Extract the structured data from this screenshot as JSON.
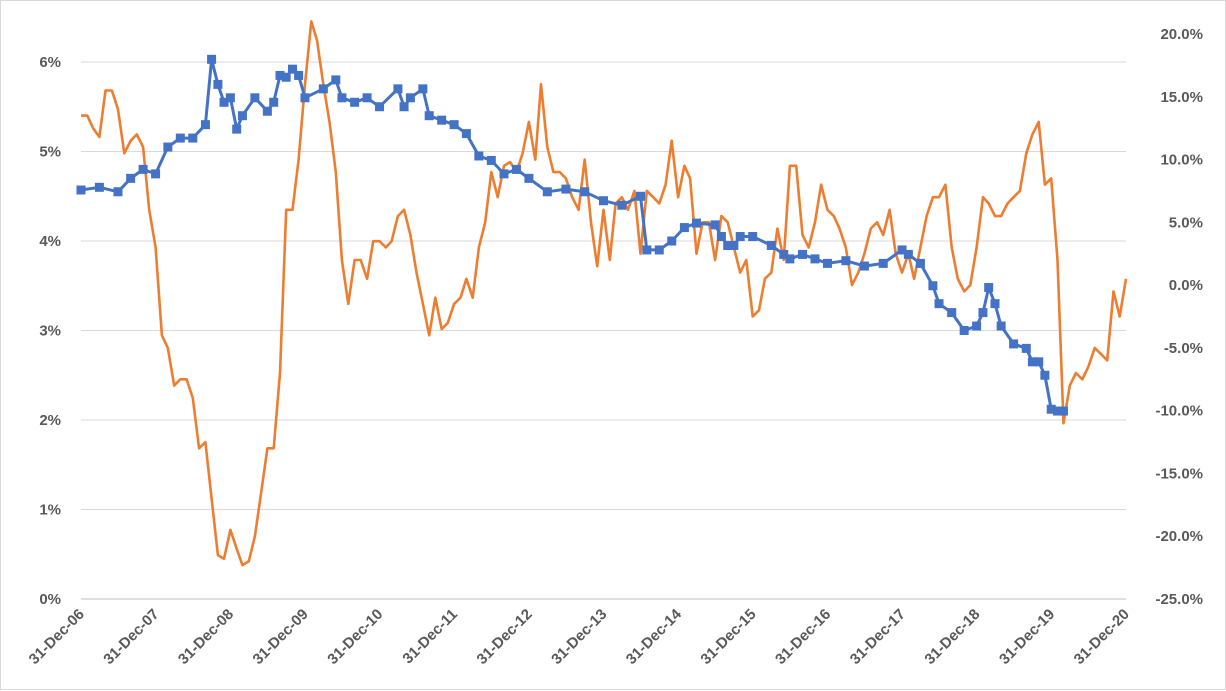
{
  "chart_data": {
    "type": "line",
    "title": "",
    "xlabel": "",
    "ylabel": "",
    "grid": true,
    "legend": "none",
    "x_range": [
      "2006-12-31",
      "2020-12-31"
    ],
    "y_left": {
      "range": [
        0,
        6
      ],
      "ticks": [
        0,
        1,
        2,
        3,
        4,
        5,
        6
      ],
      "tick_labels": [
        "0%",
        "1%",
        "2%",
        "3%",
        "4%",
        "5%",
        "6%"
      ]
    },
    "y_right": {
      "range": [
        -25,
        20
      ],
      "ticks": [
        -25,
        -20,
        -15,
        -10,
        -5,
        0,
        5,
        10,
        15,
        20
      ],
      "tick_labels": [
        "-25.0%",
        "-20.0%",
        "-15.0%",
        "-10.0%",
        "-5.0%",
        "0.0%",
        "5.0%",
        "10.0%",
        "15.0%",
        "20.0%"
      ]
    },
    "x_ticks": [
      "31-Dec-06",
      "31-Dec-07",
      "31-Dec-08",
      "31-Dec-09",
      "31-Dec-10",
      "31-Dec-11",
      "31-Dec-12",
      "31-Dec-13",
      "31-Dec-14",
      "31-Dec-15",
      "31-Dec-16",
      "31-Dec-17",
      "31-Dec-18",
      "31-Dec-19",
      "31-Dec-20"
    ],
    "series": [
      {
        "axis": "left",
        "color": "#4472c4",
        "marker": "square",
        "points": [
          [
            "2006-12-31",
            4.57
          ],
          [
            "2007-03-31",
            4.6
          ],
          [
            "2007-06-30",
            4.55
          ],
          [
            "2007-08-31",
            4.7
          ],
          [
            "2007-10-31",
            4.8
          ],
          [
            "2007-12-31",
            4.75
          ],
          [
            "2008-02-29",
            5.05
          ],
          [
            "2008-04-30",
            5.15
          ],
          [
            "2008-06-30",
            5.15
          ],
          [
            "2008-08-31",
            5.3
          ],
          [
            "2008-09-30",
            6.03
          ],
          [
            "2008-10-31",
            5.75
          ],
          [
            "2008-11-30",
            5.55
          ],
          [
            "2008-12-31",
            5.6
          ],
          [
            "2009-01-31",
            5.25
          ],
          [
            "2009-02-28",
            5.4
          ],
          [
            "2009-04-30",
            5.6
          ],
          [
            "2009-06-30",
            5.45
          ],
          [
            "2009-07-31",
            5.55
          ],
          [
            "2009-08-31",
            5.85
          ],
          [
            "2009-09-30",
            5.83
          ],
          [
            "2009-10-31",
            5.92
          ],
          [
            "2009-11-30",
            5.85
          ],
          [
            "2009-12-31",
            5.6
          ],
          [
            "2010-03-31",
            5.7
          ],
          [
            "2010-05-31",
            5.8
          ],
          [
            "2010-06-30",
            5.6
          ],
          [
            "2010-08-31",
            5.55
          ],
          [
            "2010-10-31",
            5.6
          ],
          [
            "2010-12-31",
            5.5
          ],
          [
            "2011-03-31",
            5.7
          ],
          [
            "2011-04-30",
            5.5
          ],
          [
            "2011-05-31",
            5.6
          ],
          [
            "2011-07-31",
            5.7
          ],
          [
            "2011-08-31",
            5.4
          ],
          [
            "2011-10-31",
            5.35
          ],
          [
            "2011-12-31",
            5.3
          ],
          [
            "2012-02-29",
            5.2
          ],
          [
            "2012-04-30",
            4.95
          ],
          [
            "2012-06-30",
            4.9
          ],
          [
            "2012-08-31",
            4.75
          ],
          [
            "2012-10-31",
            4.8
          ],
          [
            "2012-12-31",
            4.7
          ],
          [
            "2013-03-31",
            4.55
          ],
          [
            "2013-06-30",
            4.58
          ],
          [
            "2013-09-30",
            4.55
          ],
          [
            "2013-12-31",
            4.45
          ],
          [
            "2014-03-31",
            4.4
          ],
          [
            "2014-06-30",
            4.5
          ],
          [
            "2014-07-31",
            3.9
          ],
          [
            "2014-09-30",
            3.9
          ],
          [
            "2014-11-30",
            4.0
          ],
          [
            "2015-01-31",
            4.15
          ],
          [
            "2015-03-31",
            4.2
          ],
          [
            "2015-06-30",
            4.18
          ],
          [
            "2015-07-31",
            4.05
          ],
          [
            "2015-08-31",
            3.95
          ],
          [
            "2015-09-30",
            3.95
          ],
          [
            "2015-10-31",
            4.05
          ],
          [
            "2015-12-31",
            4.05
          ],
          [
            "2016-03-31",
            3.95
          ],
          [
            "2016-05-31",
            3.85
          ],
          [
            "2016-06-30",
            3.8
          ],
          [
            "2016-08-31",
            3.85
          ],
          [
            "2016-10-31",
            3.8
          ],
          [
            "2016-12-31",
            3.75
          ],
          [
            "2017-03-31",
            3.78
          ],
          [
            "2017-06-30",
            3.72
          ],
          [
            "2017-09-30",
            3.75
          ],
          [
            "2017-12-31",
            3.9
          ],
          [
            "2018-01-31",
            3.85
          ],
          [
            "2018-03-31",
            3.75
          ],
          [
            "2018-05-31",
            3.5
          ],
          [
            "2018-06-30",
            3.3
          ],
          [
            "2018-08-31",
            3.2
          ],
          [
            "2018-10-31",
            3.0
          ],
          [
            "2018-12-31",
            3.05
          ],
          [
            "2019-01-31",
            3.2
          ],
          [
            "2019-02-28",
            3.48
          ],
          [
            "2019-03-31",
            3.3
          ],
          [
            "2019-04-30",
            3.05
          ],
          [
            "2019-06-30",
            2.85
          ],
          [
            "2019-08-31",
            2.8
          ],
          [
            "2019-09-30",
            2.65
          ],
          [
            "2019-10-31",
            2.65
          ],
          [
            "2019-11-30",
            2.5
          ],
          [
            "2019-12-31",
            2.12
          ],
          [
            "2020-01-31",
            2.1
          ],
          [
            "2020-02-29",
            2.1
          ]
        ]
      },
      {
        "axis": "right",
        "color": "#ed7d31",
        "marker": "none",
        "points": [
          [
            "2006-12-31",
            13.5
          ],
          [
            "2007-01-31",
            13.5
          ],
          [
            "2007-02-28",
            12.5
          ],
          [
            "2007-03-31",
            11.8
          ],
          [
            "2007-04-30",
            15.5
          ],
          [
            "2007-05-31",
            15.5
          ],
          [
            "2007-06-30",
            14.0
          ],
          [
            "2007-07-31",
            10.5
          ],
          [
            "2007-08-31",
            11.5
          ],
          [
            "2007-09-30",
            12.0
          ],
          [
            "2007-10-31",
            11.0
          ],
          [
            "2007-11-30",
            6.0
          ],
          [
            "2007-12-31",
            3.0
          ],
          [
            "2008-01-31",
            -4.0
          ],
          [
            "2008-02-29",
            -5.0
          ],
          [
            "2008-03-31",
            -8.0
          ],
          [
            "2008-04-30",
            -7.5
          ],
          [
            "2008-05-31",
            -7.5
          ],
          [
            "2008-06-30",
            -9.0
          ],
          [
            "2008-07-31",
            -13.0
          ],
          [
            "2008-08-31",
            -12.5
          ],
          [
            "2008-09-30",
            -17.0
          ],
          [
            "2008-10-31",
            -21.5
          ],
          [
            "2008-11-30",
            -21.8
          ],
          [
            "2008-12-31",
            -19.5
          ],
          [
            "2009-01-31",
            -21.0
          ],
          [
            "2009-02-28",
            -22.3
          ],
          [
            "2009-03-31",
            -22.0
          ],
          [
            "2009-04-30",
            -20.0
          ],
          [
            "2009-05-31",
            -16.5
          ],
          [
            "2009-06-30",
            -13.0
          ],
          [
            "2009-07-31",
            -13.0
          ],
          [
            "2009-08-31",
            -7.0
          ],
          [
            "2009-09-30",
            6.0
          ],
          [
            "2009-10-31",
            6.0
          ],
          [
            "2009-11-30",
            10.0
          ],
          [
            "2009-12-31",
            16.0
          ],
          [
            "2010-01-31",
            21.0
          ],
          [
            "2010-02-28",
            19.5
          ],
          [
            "2010-03-31",
            16.0
          ],
          [
            "2010-04-30",
            13.0
          ],
          [
            "2010-05-31",
            9.0
          ],
          [
            "2010-06-30",
            2.0
          ],
          [
            "2010-07-31",
            -1.5
          ],
          [
            "2010-08-31",
            2.0
          ],
          [
            "2010-09-30",
            2.0
          ],
          [
            "2010-10-31",
            0.5
          ],
          [
            "2010-11-30",
            3.5
          ],
          [
            "2010-12-31",
            3.5
          ],
          [
            "2011-01-31",
            3.0
          ],
          [
            "2011-02-28",
            3.5
          ],
          [
            "2011-03-31",
            5.5
          ],
          [
            "2011-04-30",
            6.0
          ],
          [
            "2011-05-31",
            4.0
          ],
          [
            "2011-06-30",
            1.0
          ],
          [
            "2011-07-31",
            -1.5
          ],
          [
            "2011-08-31",
            -4.0
          ],
          [
            "2011-09-30",
            -1.0
          ],
          [
            "2011-10-31",
            -3.5
          ],
          [
            "2011-11-30",
            -3.0
          ],
          [
            "2011-12-31",
            -1.5
          ],
          [
            "2012-01-31",
            -1.0
          ],
          [
            "2012-02-29",
            0.5
          ],
          [
            "2012-03-31",
            -1.0
          ],
          [
            "2012-04-30",
            3.0
          ],
          [
            "2012-05-31",
            5.0
          ],
          [
            "2012-06-30",
            9.0
          ],
          [
            "2012-07-31",
            7.0
          ],
          [
            "2012-08-31",
            9.5
          ],
          [
            "2012-09-30",
            9.8
          ],
          [
            "2012-10-31",
            9.0
          ],
          [
            "2012-11-30",
            10.5
          ],
          [
            "2012-12-31",
            13.0
          ],
          [
            "2013-01-31",
            10.0
          ],
          [
            "2013-02-28",
            16.0
          ],
          [
            "2013-03-31",
            11.0
          ],
          [
            "2013-04-30",
            9.0
          ],
          [
            "2013-05-31",
            9.0
          ],
          [
            "2013-06-30",
            8.5
          ],
          [
            "2013-07-31",
            7.0
          ],
          [
            "2013-08-31",
            6.0
          ],
          [
            "2013-09-30",
            10.0
          ],
          [
            "2013-10-31",
            5.0
          ],
          [
            "2013-11-30",
            1.5
          ],
          [
            "2013-12-31",
            6.0
          ],
          [
            "2014-01-31",
            2.0
          ],
          [
            "2014-02-28",
            6.5
          ],
          [
            "2014-03-31",
            7.0
          ],
          [
            "2014-04-30",
            6.0
          ],
          [
            "2014-05-31",
            7.5
          ],
          [
            "2014-06-30",
            2.5
          ],
          [
            "2014-07-31",
            7.5
          ],
          [
            "2014-08-31",
            7.0
          ],
          [
            "2014-09-30",
            6.5
          ],
          [
            "2014-10-31",
            8.0
          ],
          [
            "2014-11-30",
            11.5
          ],
          [
            "2014-12-31",
            7.0
          ],
          [
            "2015-01-31",
            9.5
          ],
          [
            "2015-02-28",
            8.5
          ],
          [
            "2015-03-31",
            2.5
          ],
          [
            "2015-04-30",
            5.0
          ],
          [
            "2015-05-31",
            5.0
          ],
          [
            "2015-06-30",
            2.0
          ],
          [
            "2015-07-31",
            5.5
          ],
          [
            "2015-08-31",
            5.0
          ],
          [
            "2015-09-30",
            3.0
          ],
          [
            "2015-10-31",
            1.0
          ],
          [
            "2015-11-30",
            2.0
          ],
          [
            "2015-12-31",
            -2.5
          ],
          [
            "2016-01-31",
            -2.0
          ],
          [
            "2016-02-29",
            0.5
          ],
          [
            "2016-03-31",
            1.0
          ],
          [
            "2016-04-30",
            4.5
          ],
          [
            "2016-05-31",
            2.0
          ],
          [
            "2016-06-30",
            9.5
          ],
          [
            "2016-07-31",
            9.5
          ],
          [
            "2016-08-31",
            4.0
          ],
          [
            "2016-09-30",
            3.0
          ],
          [
            "2016-10-31",
            5.0
          ],
          [
            "2016-11-30",
            8.0
          ],
          [
            "2016-12-31",
            6.0
          ],
          [
            "2017-01-31",
            5.5
          ],
          [
            "2017-02-28",
            4.5
          ],
          [
            "2017-03-31",
            3.0
          ],
          [
            "2017-04-30",
            0.0
          ],
          [
            "2017-05-31",
            1.0
          ],
          [
            "2017-06-30",
            2.5
          ],
          [
            "2017-07-31",
            4.5
          ],
          [
            "2017-08-31",
            5.0
          ],
          [
            "2017-09-30",
            4.0
          ],
          [
            "2017-10-31",
            6.0
          ],
          [
            "2017-11-30",
            2.5
          ],
          [
            "2017-12-31",
            1.0
          ],
          [
            "2018-01-31",
            2.5
          ],
          [
            "2018-02-28",
            0.5
          ],
          [
            "2018-03-31",
            3.0
          ],
          [
            "2018-04-30",
            5.5
          ],
          [
            "2018-05-31",
            7.0
          ],
          [
            "2018-06-30",
            7.0
          ],
          [
            "2018-07-31",
            8.0
          ],
          [
            "2018-08-31",
            3.0
          ],
          [
            "2018-09-30",
            0.5
          ],
          [
            "2018-10-31",
            -0.5
          ],
          [
            "2018-11-30",
            0.0
          ],
          [
            "2018-12-31",
            3.0
          ],
          [
            "2019-01-31",
            7.0
          ],
          [
            "2019-02-28",
            6.5
          ],
          [
            "2019-03-31",
            5.5
          ],
          [
            "2019-04-30",
            5.5
          ],
          [
            "2019-05-31",
            6.5
          ],
          [
            "2019-06-30",
            7.0
          ],
          [
            "2019-07-31",
            7.5
          ],
          [
            "2019-08-31",
            10.5
          ],
          [
            "2019-09-30",
            12.0
          ],
          [
            "2019-10-31",
            13.0
          ],
          [
            "2019-11-30",
            8.0
          ],
          [
            "2019-12-31",
            8.5
          ],
          [
            "2020-01-31",
            2.0
          ],
          [
            "2020-02-29",
            -11.0
          ],
          [
            "2020-03-31",
            -8.0
          ],
          [
            "2020-04-30",
            -7.0
          ],
          [
            "2020-05-31",
            -7.5
          ],
          [
            "2020-06-30",
            -6.5
          ],
          [
            "2020-07-31",
            -5.0
          ],
          [
            "2020-08-31",
            -5.5
          ],
          [
            "2020-09-30",
            -6.0
          ],
          [
            "2020-10-31",
            -0.5
          ],
          [
            "2020-11-30",
            -2.5
          ],
          [
            "2020-12-31",
            0.5
          ]
        ]
      }
    ]
  }
}
